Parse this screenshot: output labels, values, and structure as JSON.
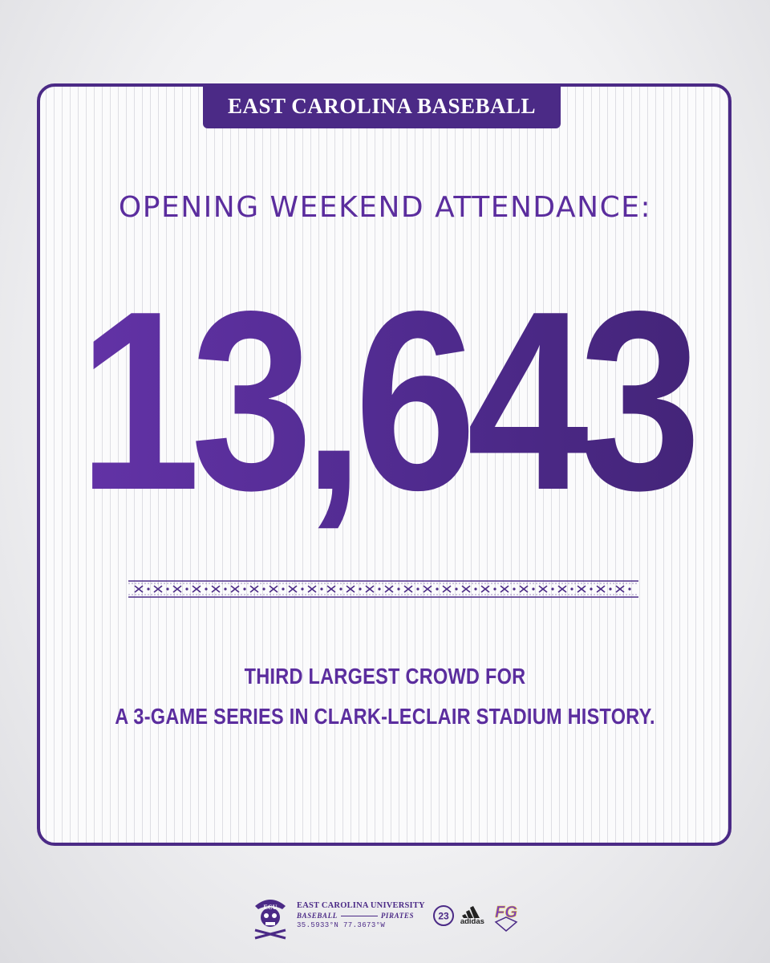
{
  "banner": {
    "title": "EAST CAROLINA BASEBALL"
  },
  "headline": "OPENING WEEKEND ATTENDANCE:",
  "attendance": "13,643",
  "subtext": {
    "line1": "THIRD LARGEST CROWD FOR",
    "line2": "A 3-GAME SERIES IN CLARK-LECLAIR STADIUM HISTORY."
  },
  "footer": {
    "university": "EAST CAROLINA UNIVERSITY",
    "sport": "BASEBALL",
    "team": "PIRATES",
    "coordinates": "35.5933°N 77.3673°W",
    "badge_number": "23",
    "sponsor": "adidas",
    "mascot_letters": "ECU",
    "partner_logo_letters": "FG"
  },
  "colors": {
    "brand_purple": "#4b2a86",
    "text_purple": "#5b2d9e",
    "card_background": "#fbfbfc"
  },
  "icons": {
    "mascot": "pirate-skull-icon",
    "badge": "number-23-circle-icon",
    "sponsor": "adidas-logo-icon",
    "partner": "fg-shield-logo-icon",
    "divider": "crossed-swords-pattern"
  }
}
